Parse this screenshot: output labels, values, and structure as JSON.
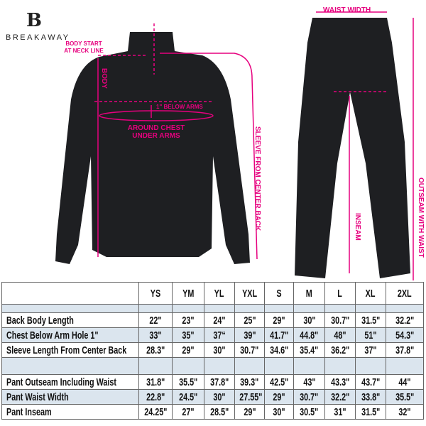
{
  "brand": {
    "name": "BREAKAWAY",
    "logo_letter": "B"
  },
  "annotations": {
    "body_start": "BODY START AT NECK LINE",
    "body": "BODY",
    "below_arms": "1\" BELOW ARMS",
    "around_chest": "AROUND CHEST UNDER ARMS",
    "sleeve": "SLEEVE FROM CENTER BACK",
    "waist_width": "WAIST WIDTH",
    "inseam": "INSEAM",
    "outseam": "OUTSEAM WITH WAIST"
  },
  "colors": {
    "accent": "#e6007e",
    "garment": "#1e1f22",
    "row_alt": "#dbe5ee"
  },
  "table": {
    "sizes": [
      "YS",
      "YM",
      "YL",
      "YXL",
      "S",
      "M",
      "L",
      "XL",
      "2XL"
    ],
    "rows": [
      {
        "label": "Back Body Length",
        "values": [
          "22\"",
          "23\"",
          "24\"",
          "25\"",
          "29\"",
          "30\"",
          "30.7\"",
          "31.5\"",
          "32.2\""
        ]
      },
      {
        "label": "Chest Below Arm Hole 1\"",
        "values": [
          "33\"",
          "35\"",
          "37“",
          "39\"",
          "41.7\"",
          "44.8\"",
          "48\"",
          "51\"",
          "54.3\""
        ]
      },
      {
        "label": "Sleeve Length From Center Back",
        "values": [
          "28.3\"",
          "29\"",
          "30\"",
          "30.7\"",
          "34.6\"",
          "35.4\"",
          "36.2\"",
          "37\"",
          "37.8\""
        ]
      },
      {
        "label": "Pant Outseam Including Waist",
        "values": [
          "31.8\"",
          "35.5\"",
          "37.8\"",
          "39.3\"",
          "42.5\"",
          "43\"",
          "43.3\"",
          "43.7\"",
          "44\""
        ]
      },
      {
        "label": "Pant Waist Width",
        "values": [
          "22.8\"",
          "24.5\"",
          "30\"",
          "27.55\"",
          "29\"",
          "30.7\"",
          "32.2\"",
          "33.8\"",
          "35.5\""
        ]
      },
      {
        "label": "Pant Inseam",
        "values": [
          "24.25\"",
          "27\"",
          "28.5\"",
          "29\"",
          "30\"",
          "30.5\"",
          "31\"",
          "31.5\"",
          "32\""
        ]
      }
    ]
  }
}
